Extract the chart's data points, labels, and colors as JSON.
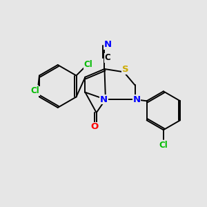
{
  "background_color": "#e6e6e6",
  "atom_colors": {
    "C": "#000000",
    "N": "#0000ff",
    "O": "#ff0000",
    "S": "#ccaa00",
    "Cl": "#00bb00",
    "H": "#000000"
  },
  "bond_color": "#000000",
  "bond_width": 1.4
}
